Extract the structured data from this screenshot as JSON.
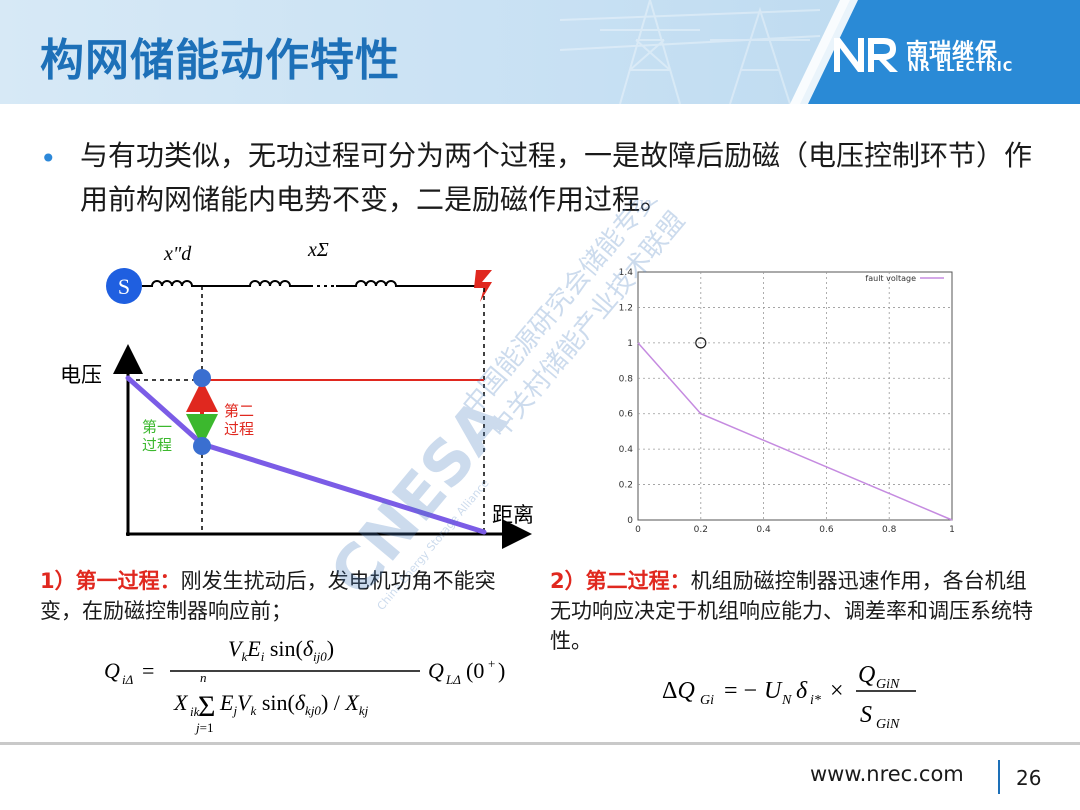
{
  "slide": {
    "title": "构网储能动作特性",
    "page_number": "26",
    "footer_url": "www.nrec.com"
  },
  "logo": {
    "cn": "南瑞继保",
    "en": "NR ELECTRIC",
    "mark": "NR"
  },
  "bullet": {
    "text": "与有功类似，无功过程可分为两个过程，一是故障后励磁（电压控制环节）作用前构网储能内电势不变，二是励磁作用过程。"
  },
  "diagram": {
    "source_label": "S",
    "reactance1": "x\"d",
    "reactance2": "xΣ",
    "y_axis_label": "电压",
    "x_axis_label": "距离",
    "process1_label_line1": "第一",
    "process1_label_line2": "过程",
    "process2_label_line1": "第二",
    "process2_label_line2": "过程",
    "colors": {
      "curve": "#7b5ce6",
      "red_line": "#e0281f",
      "dot": "#3a6fd0",
      "up_arrow": "#e0281f",
      "down_arrow": "#3cb82e",
      "source": "#1f5fe0"
    }
  },
  "chart_data": {
    "type": "line",
    "legend": [
      "fault voltage"
    ],
    "legend_position": "top-right",
    "series": [
      {
        "name": "fault voltage",
        "x": [
          0,
          0.2,
          1
        ],
        "y": [
          1.0,
          0.6,
          0.0
        ],
        "color": "#c58be0"
      }
    ],
    "marker": {
      "x": 0.2,
      "y": 1.0,
      "shape": "open-circle"
    },
    "xlim": [
      0,
      1
    ],
    "ylim": [
      0,
      1.4
    ],
    "xticks": [
      "0",
      "0.2",
      "0.4",
      "0.6",
      "0.8",
      "1"
    ],
    "yticks": [
      "0",
      "0.2",
      "0.4",
      "0.6",
      "0.8",
      "1",
      "1.2",
      "1.4"
    ],
    "grid": true
  },
  "process1": {
    "label": "1）第一过程：",
    "text": "刚发生扰动后，发电机功角不能突变，在励磁控制器响应前；"
  },
  "process2": {
    "label": "2）第二过程：",
    "text": "机组励磁控制器迅速作用，各台机组无功响应决定于机组响应能力、调差率和调压系统特性。"
  },
  "watermark": {
    "big": "CNESA",
    "line1": "中国能源研究会储能专委会",
    "line2": "中关村储能产业技术联盟",
    "small": "China Energy Storage Alliance"
  }
}
